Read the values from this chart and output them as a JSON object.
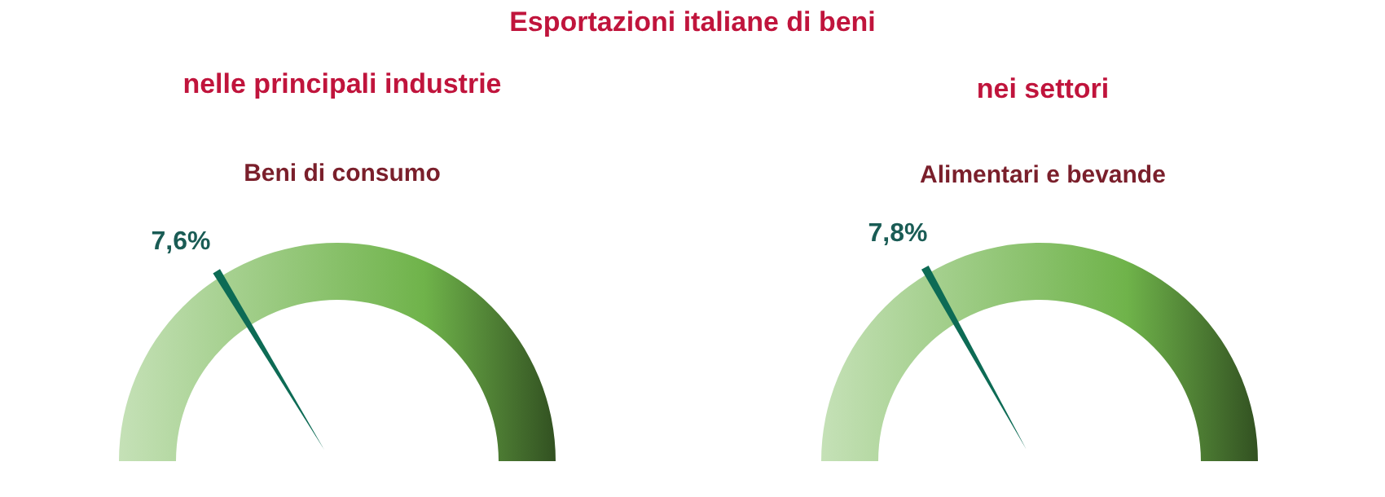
{
  "chart_data": [
    {
      "type": "other",
      "annotations": [
        "Esportazioni italiane di beni"
      ],
      "title": "nelle principali industrie",
      "subtitle": "Beni di consumo",
      "values": [
        7.6
      ],
      "value_labels": [
        "7,6%"
      ],
      "color": "#6fb34a"
    },
    {
      "type": "other",
      "title": "nei settori",
      "subtitle": "Alimentari e bevande",
      "values": [
        7.8
      ],
      "value_labels": [
        "7,8%"
      ],
      "color": "#6fb34a"
    }
  ]
}
